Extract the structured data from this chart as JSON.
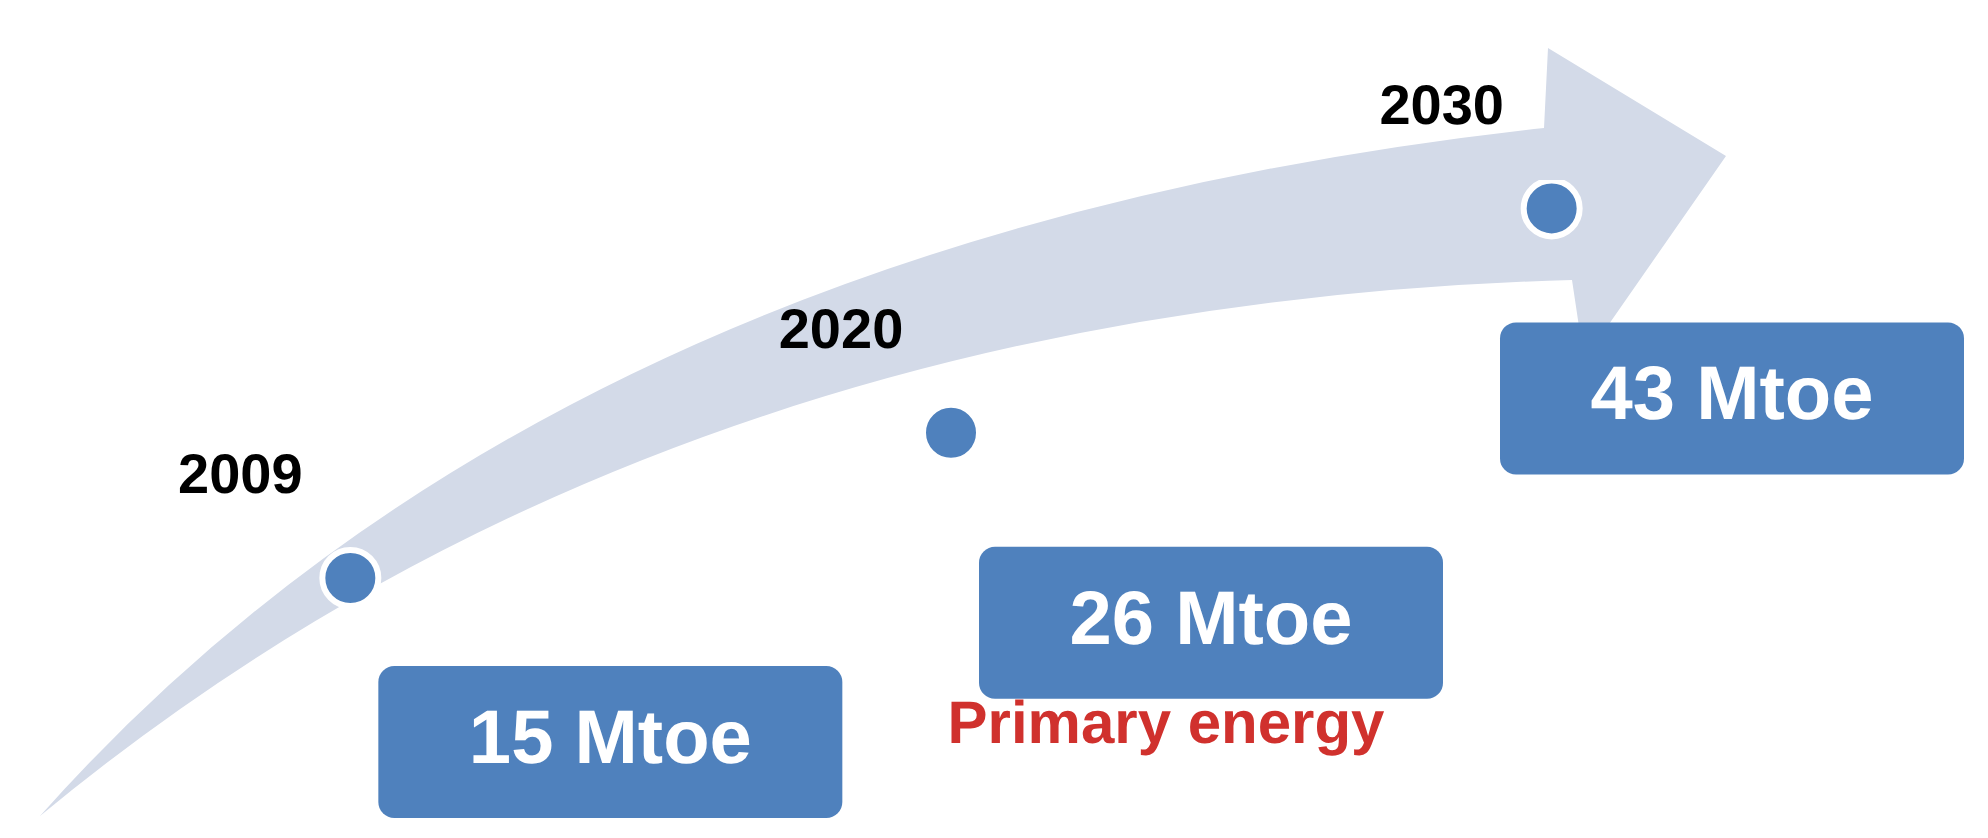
{
  "chart_data": {
    "type": "other",
    "categories": [
      "2009",
      "2020",
      "2030"
    ],
    "values": [
      15,
      26,
      43
    ],
    "value_labels": [
      "15 Mtoe",
      "26 Mtoe",
      "43 Mtoe"
    ],
    "color": "#4f81bd",
    "annotations": [
      "Primary energy"
    ]
  }
}
